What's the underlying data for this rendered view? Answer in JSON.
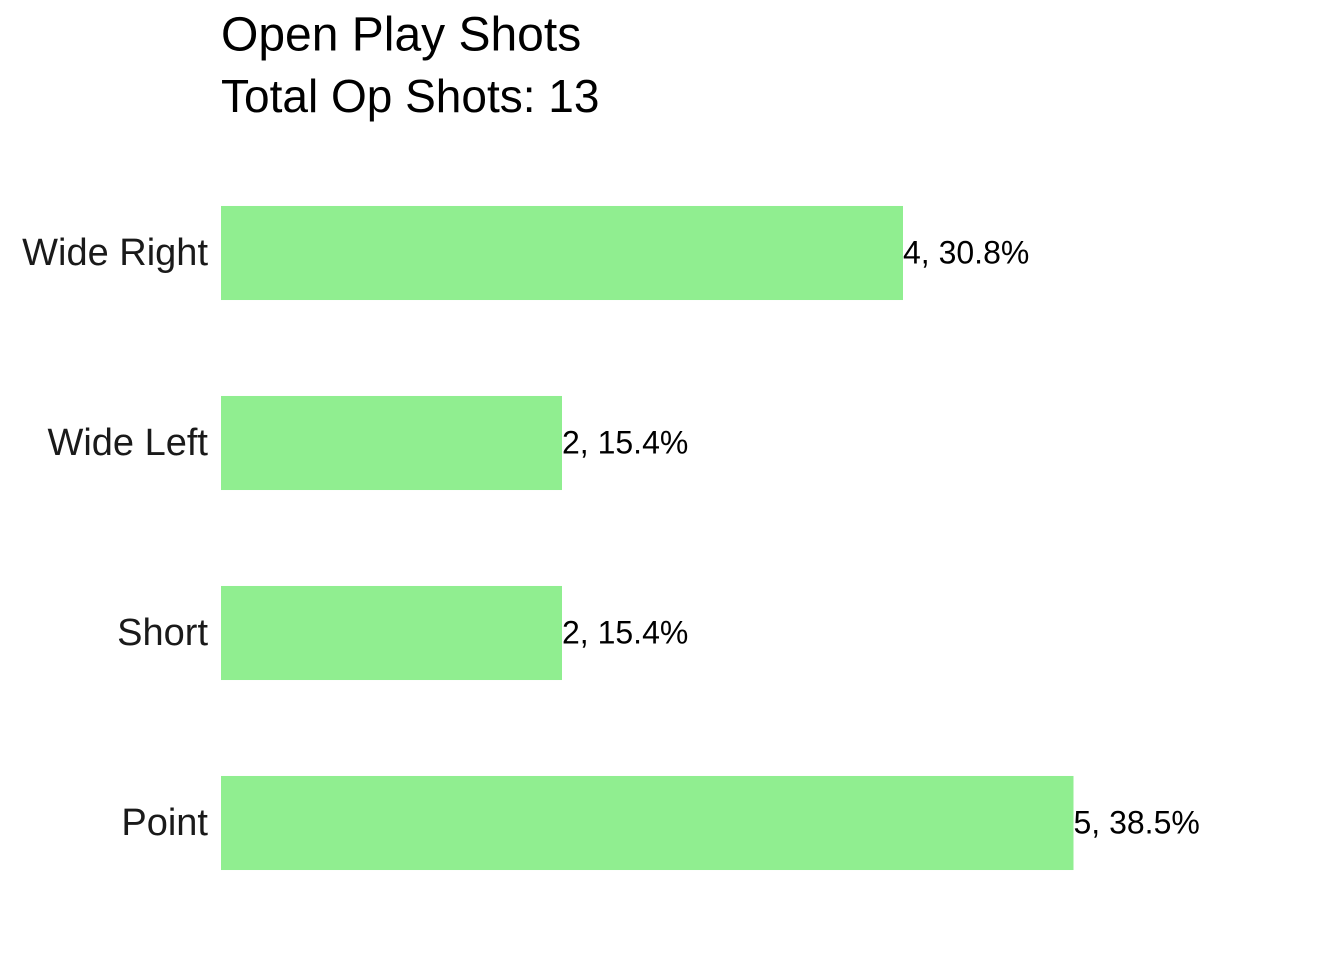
{
  "chart_data": {
    "type": "barh",
    "title": "Open Play Shots",
    "subtitle": "Total Op Shots: 13",
    "categories": [
      "Wide Right",
      "Wide Left",
      "Short",
      "Point"
    ],
    "values": [
      4,
      2,
      2,
      5
    ],
    "value_labels": [
      "4, 30.8%",
      "2, 15.4%",
      "2, 15.4%",
      "5, 38.5%"
    ],
    "color": "#90ee90",
    "xlim": [
      0,
      6
    ]
  }
}
